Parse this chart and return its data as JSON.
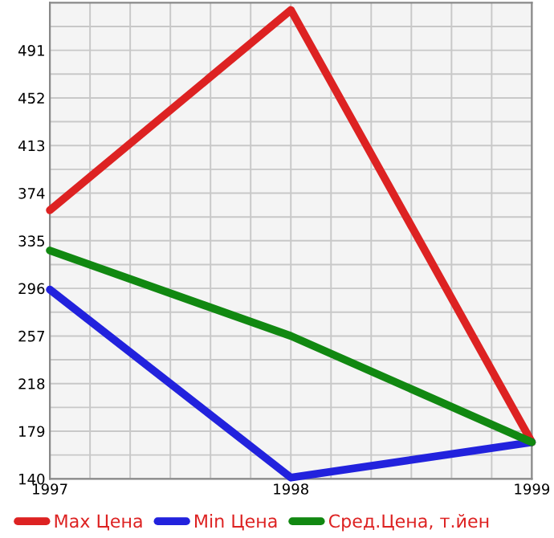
{
  "chart_data": {
    "type": "line",
    "x": [
      1997,
      1998,
      1999
    ],
    "series": [
      {
        "name": "Max Цена",
        "color": "#dd2222",
        "values": [
          360,
          524,
          170
        ]
      },
      {
        "name": "Min Цена",
        "color": "#2222dd",
        "values": [
          295,
          141,
          170
        ]
      },
      {
        "name": "Сред.Цена, т.йен",
        "color": "#118811",
        "values": [
          327,
          257,
          170
        ]
      }
    ],
    "xlim": [
      1997,
      1999
    ],
    "xticks": [
      1997,
      {
        "value": 1997.1667,
        "label": null
      },
      {
        "value": 1997.3333,
        "label": null
      },
      {
        "value": 1997.5,
        "label": null
      },
      {
        "value": 1997.6667,
        "label": null
      },
      {
        "value": 1997.8333,
        "label": null
      },
      1998,
      {
        "value": 1998.1667,
        "label": null
      },
      {
        "value": 1998.3333,
        "label": null
      },
      {
        "value": 1998.5,
        "label": null
      },
      {
        "value": 1998.6667,
        "label": null
      },
      {
        "value": 1998.8333,
        "label": null
      },
      1999
    ],
    "ylim": [
      140,
      530
    ],
    "yticks": [
      140,
      {
        "value": 159.5,
        "label": null
      },
      179,
      {
        "value": 198.5,
        "label": null
      },
      218,
      {
        "value": 237.5,
        "label": null
      },
      257,
      {
        "value": 276.5,
        "label": null
      },
      296,
      {
        "value": 315.5,
        "label": null
      },
      335,
      {
        "value": 354.5,
        "label": null
      },
      374,
      {
        "value": 393.5,
        "label": null
      },
      413,
      {
        "value": 432.5,
        "label": null
      },
      452,
      {
        "value": 471.5,
        "label": null
      },
      491,
      {
        "value": 510.5,
        "label": null
      }
    ],
    "grid": true,
    "legend": "bottom",
    "marker": "none",
    "line_style": "solid"
  }
}
